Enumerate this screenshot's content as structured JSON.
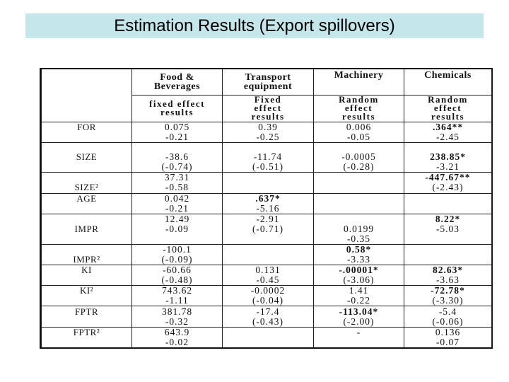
{
  "slide": {
    "title": "Estimation Results (Export spillovers)"
  },
  "table": {
    "headers": [
      "",
      "Food & Beverages",
      "Transport equipment",
      "Machinery",
      "Chemicals"
    ],
    "subheaders": [
      "",
      "fixed effect results",
      "Fixed effect results",
      "Random effect results",
      "Random effect results"
    ],
    "rows": [
      {
        "label": "FOR",
        "cells": [
          "0.075",
          "0.39",
          "0.006",
          ".364**"
        ],
        "bold": [
          false,
          false,
          false,
          true
        ],
        "sep": true
      },
      {
        "label": "",
        "cells": [
          "-0.21",
          "-0.25",
          "-0.05",
          "-2.45"
        ],
        "bold": [
          false,
          false,
          false,
          false
        ],
        "sep": false
      },
      {
        "label": "",
        "cells": [
          "",
          "",
          "",
          ""
        ],
        "bold": [
          false,
          false,
          false,
          false
        ],
        "sep": true
      },
      {
        "label": "SIZE",
        "cells": [
          "-38.6",
          "-11.74",
          "-0.0005",
          "238.85*"
        ],
        "bold": [
          false,
          false,
          false,
          true
        ],
        "sep": false
      },
      {
        "label": "",
        "cells": [
          "(-0.74)",
          "(-0.51)",
          "(-0.28)",
          "-3.21"
        ],
        "bold": [
          false,
          false,
          false,
          false
        ],
        "sep": false
      },
      {
        "label": "",
        "cells": [
          "37.31",
          "",
          "",
          "-447.67**"
        ],
        "bold": [
          false,
          false,
          false,
          true
        ],
        "sep": true
      },
      {
        "label": "SIZE²",
        "cells": [
          "-0.58",
          "",
          "",
          "(-2.43)"
        ],
        "bold": [
          false,
          false,
          false,
          false
        ],
        "sep": false
      },
      {
        "label": "AGE",
        "cells": [
          "0.042",
          ".637*",
          "",
          ""
        ],
        "bold": [
          false,
          true,
          false,
          false
        ],
        "sep": true
      },
      {
        "label": "",
        "cells": [
          "-0.21",
          "-5.16",
          "",
          ""
        ],
        "bold": [
          false,
          false,
          false,
          false
        ],
        "sep": false
      },
      {
        "label": "",
        "cells": [
          "12.49",
          "-2.91",
          "",
          "8.22*"
        ],
        "bold": [
          false,
          false,
          false,
          true
        ],
        "sep": true
      },
      {
        "label": "IMPR",
        "cells": [
          "-0.09",
          "(-0.71)",
          "0.0199",
          "-5.03"
        ],
        "bold": [
          false,
          false,
          false,
          false
        ],
        "sep": false
      },
      {
        "label": "",
        "cells": [
          "",
          "",
          "-0.35",
          ""
        ],
        "bold": [
          false,
          false,
          false,
          false
        ],
        "sep": false
      },
      {
        "label": "",
        "cells": [
          "-100.1",
          "",
          "0.58*",
          ""
        ],
        "bold": [
          false,
          false,
          true,
          false
        ],
        "sep": true
      },
      {
        "label": "IMPR²",
        "cells": [
          "(-0.09)",
          "",
          "-3.33",
          ""
        ],
        "bold": [
          false,
          false,
          false,
          false
        ],
        "sep": false
      },
      {
        "label": "KI",
        "cells": [
          "-60.66",
          "0.131",
          "-.00001*",
          "82.63*"
        ],
        "bold": [
          false,
          false,
          true,
          true
        ],
        "sep": true
      },
      {
        "label": "",
        "cells": [
          "(-0.48)",
          "-0.45",
          "(-3.06)",
          "-3.63"
        ],
        "bold": [
          false,
          false,
          false,
          false
        ],
        "sep": false
      },
      {
        "label": "KI²",
        "cells": [
          "743.62",
          "-0.0002",
          "1.41",
          "-72.78*"
        ],
        "bold": [
          false,
          false,
          false,
          true
        ],
        "sep": true
      },
      {
        "label": "",
        "cells": [
          "-1.11",
          "(-0.04)",
          "-0.22",
          "(-3.30)"
        ],
        "bold": [
          false,
          false,
          false,
          false
        ],
        "sep": false
      },
      {
        "label": "FPTR",
        "cells": [
          "381.78",
          "-17.4",
          "-113.04*",
          "-5.4"
        ],
        "bold": [
          false,
          false,
          true,
          false
        ],
        "sep": true
      },
      {
        "label": "",
        "cells": [
          "-0.32",
          "(-0.43)",
          "(-2.00)",
          "(-0.06)"
        ],
        "bold": [
          false,
          false,
          false,
          false
        ],
        "sep": false
      },
      {
        "label": "FPTR²",
        "cells": [
          "643.9",
          "",
          "-",
          "0.136"
        ],
        "bold": [
          false,
          false,
          false,
          false
        ],
        "sep": true
      },
      {
        "label": "",
        "cells": [
          "-0.02",
          "",
          "",
          "-0.07"
        ],
        "bold": [
          false,
          false,
          false,
          false
        ],
        "sep": false
      }
    ]
  }
}
